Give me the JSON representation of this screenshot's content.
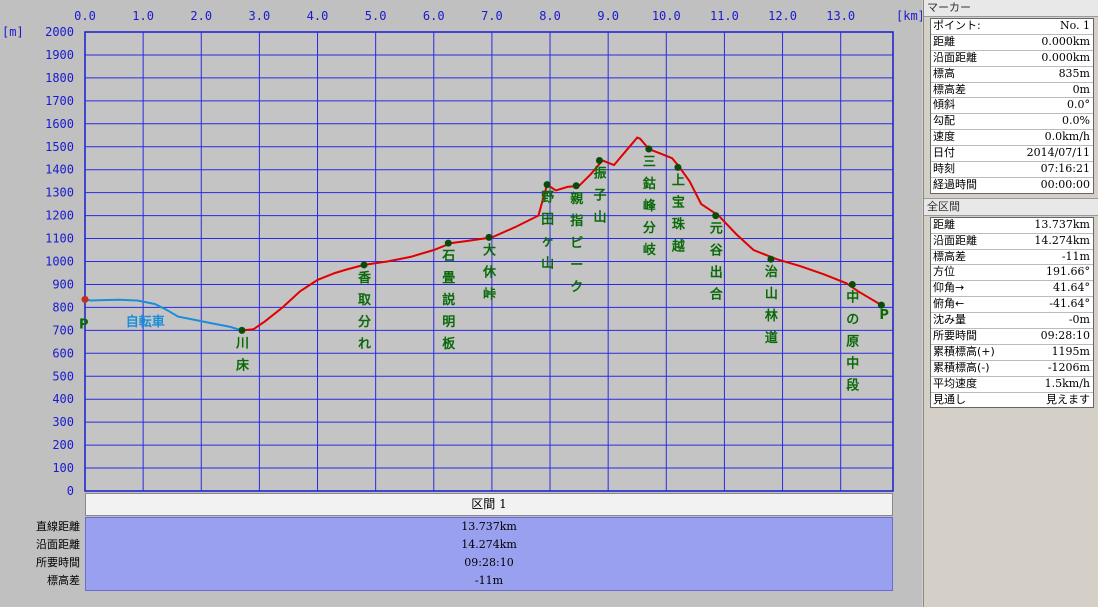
{
  "chart_data": {
    "type": "line",
    "x_unit_label": "[km]",
    "y_unit_label": "[m]",
    "x_ticks": [
      "0.0",
      "1.0",
      "2.0",
      "3.0",
      "4.0",
      "5.0",
      "6.0",
      "7.0",
      "8.0",
      "9.0",
      "10.0",
      "11.0",
      "12.0",
      "13.0"
    ],
    "y_ticks": [
      "0",
      "100",
      "200",
      "300",
      "400",
      "500",
      "600",
      "700",
      "800",
      "900",
      "1000",
      "1100",
      "1200",
      "1300",
      "1400",
      "1500",
      "1600",
      "1700",
      "1800",
      "1900",
      "2000"
    ],
    "xlim": [
      0,
      13.9
    ],
    "ylim": [
      0,
      2000
    ],
    "grid": true,
    "series": [
      {
        "name": "自転車",
        "color": "#1a8ed8",
        "x": [
          0.0,
          0.1,
          0.3,
          0.6,
          0.9,
          1.2,
          1.4,
          1.6,
          1.9,
          2.2,
          2.5,
          2.7
        ],
        "y": [
          835,
          830,
          832,
          833,
          830,
          815,
          790,
          760,
          745,
          730,
          715,
          700
        ]
      },
      {
        "name": "",
        "color": "#e00000",
        "x": [
          2.7,
          2.9,
          3.1,
          3.4,
          3.7,
          4.0,
          4.3,
          4.5,
          4.8,
          5.2,
          5.6,
          6.0,
          6.3,
          6.6,
          7.0,
          7.4,
          7.8,
          7.95,
          8.1,
          8.3,
          8.5,
          8.7,
          8.9,
          9.1,
          9.3,
          9.5,
          9.55,
          9.7,
          9.9,
          10.1,
          10.2,
          10.4,
          10.6,
          10.9,
          11.2,
          11.5,
          11.9,
          12.3,
          12.7,
          13.1,
          13.3,
          13.5,
          13.7
        ],
        "y": [
          700,
          705,
          740,
          800,
          870,
          920,
          950,
          965,
          985,
          1000,
          1020,
          1050,
          1080,
          1090,
          1105,
          1150,
          1200,
          1335,
          1310,
          1325,
          1330,
          1380,
          1440,
          1420,
          1480,
          1540,
          1535,
          1490,
          1470,
          1450,
          1420,
          1350,
          1250,
          1200,
          1120,
          1050,
          1010,
          980,
          945,
          905,
          870,
          840,
          810
        ]
      }
    ],
    "waypoints": [
      {
        "x": 2.7,
        "y": 700,
        "label": "川床"
      },
      {
        "x": 4.8,
        "y": 985,
        "label": "香取分れ"
      },
      {
        "x": 6.25,
        "y": 1080,
        "label": "石畳説明板"
      },
      {
        "x": 6.95,
        "y": 1105,
        "label": "大休峠"
      },
      {
        "x": 7.95,
        "y": 1335,
        "label": "野田ヶ山"
      },
      {
        "x": 8.45,
        "y": 1330,
        "label": "親指ピーク"
      },
      {
        "x": 8.85,
        "y": 1440,
        "label": "振子山"
      },
      {
        "x": 9.7,
        "y": 1490,
        "label": "三鈷峰分岐"
      },
      {
        "x": 10.2,
        "y": 1410,
        "label": "上宝珠越"
      },
      {
        "x": 10.85,
        "y": 1200,
        "label": "元谷出合"
      },
      {
        "x": 11.8,
        "y": 1010,
        "label": "治山林道"
      },
      {
        "x": 13.2,
        "y": 900,
        "label": "中の原中段"
      }
    ],
    "start_marker": "P",
    "end_marker": "P",
    "bicycle_label": "自転車"
  },
  "section": {
    "header": "区間 1",
    "rows": [
      {
        "label": "直線距離",
        "value": "13.737km"
      },
      {
        "label": "沿面距離",
        "value": "14.274km"
      },
      {
        "label": "所要時間",
        "value": "09:28:10"
      },
      {
        "label": "標高差",
        "value": "-11m"
      }
    ]
  },
  "marker_panel": {
    "title": "マーカー",
    "rows": [
      {
        "k": "ポイント:",
        "v": "No. 1"
      },
      {
        "k": "距離",
        "v": "0.000km"
      },
      {
        "k": "沿面距離",
        "v": "0.000km"
      },
      {
        "k": "標高",
        "v": "835m"
      },
      {
        "k": "標高差",
        "v": "0m"
      },
      {
        "k": "傾斜",
        "v": "0.0°"
      },
      {
        "k": "勾配",
        "v": "0.0%"
      },
      {
        "k": "速度",
        "v": "0.0km/h"
      },
      {
        "k": "日付",
        "v": "2014/07/11"
      },
      {
        "k": "時刻",
        "v": "07:16:21"
      },
      {
        "k": "経過時間",
        "v": "00:00:00"
      }
    ]
  },
  "total_panel": {
    "title": "全区間",
    "rows": [
      {
        "k": "距離",
        "v": "13.737km"
      },
      {
        "k": "沿面距離",
        "v": "14.274km"
      },
      {
        "k": "標高差",
        "v": "-11m"
      },
      {
        "k": "方位",
        "v": "191.66°"
      },
      {
        "k": "仰角→",
        "v": "41.64°"
      },
      {
        "k": "俯角←",
        "v": "-41.64°"
      },
      {
        "k": "沈み量",
        "v": "-0m"
      },
      {
        "k": "所要時間",
        "v": "09:28:10"
      },
      {
        "k": "累積標高(+)",
        "v": "1195m"
      },
      {
        "k": "累積標高(-)",
        "v": "-1206m"
      },
      {
        "k": "平均速度",
        "v": "1.5km/h"
      },
      {
        "k": "見通し",
        "v": "見えます"
      }
    ]
  }
}
